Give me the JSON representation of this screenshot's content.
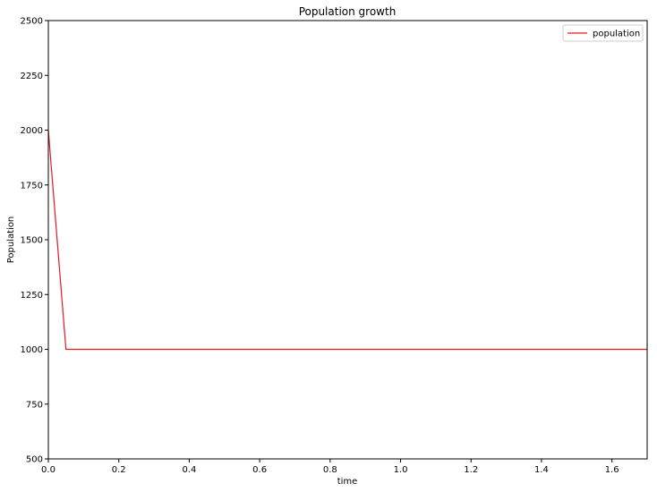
{
  "chart_data": {
    "type": "line",
    "title": "Population growth",
    "xlabel": "time",
    "ylabel": "Population",
    "xlim": [
      0,
      1.7
    ],
    "ylim": [
      500,
      2500
    ],
    "x_ticks": [
      0,
      0.2,
      0.4,
      0.6,
      0.8,
      1.0,
      1.2,
      1.4,
      1.6
    ],
    "x_tick_labels": [
      "0.0",
      "0.2",
      "0.4",
      "0.6",
      "0.8",
      "1.0",
      "1.2",
      "1.4",
      "1.6"
    ],
    "y_ticks": [
      500,
      750,
      1000,
      1250,
      1500,
      1750,
      2000,
      2250,
      2500
    ],
    "y_tick_labels": [
      "500",
      "750",
      "1000",
      "1250",
      "1500",
      "1750",
      "2000",
      "2250",
      "2500"
    ],
    "grid": false,
    "legend_position": "top-right",
    "series": [
      {
        "name": "population",
        "color": "#e31a1c",
        "x": [
          0,
          0.05,
          0.1,
          0.2,
          0.3,
          0.4,
          0.5,
          0.6,
          0.7,
          0.8,
          0.9,
          1.0,
          1.1,
          1.2,
          1.3,
          1.4,
          1.5,
          1.6,
          1.7
        ],
        "y": [
          2000,
          1000,
          1000,
          1000,
          1000,
          1000,
          1000,
          1000,
          1000,
          1000,
          1000,
          1000,
          1000,
          1000,
          1000,
          1000,
          1000,
          1000,
          1000
        ]
      }
    ]
  }
}
